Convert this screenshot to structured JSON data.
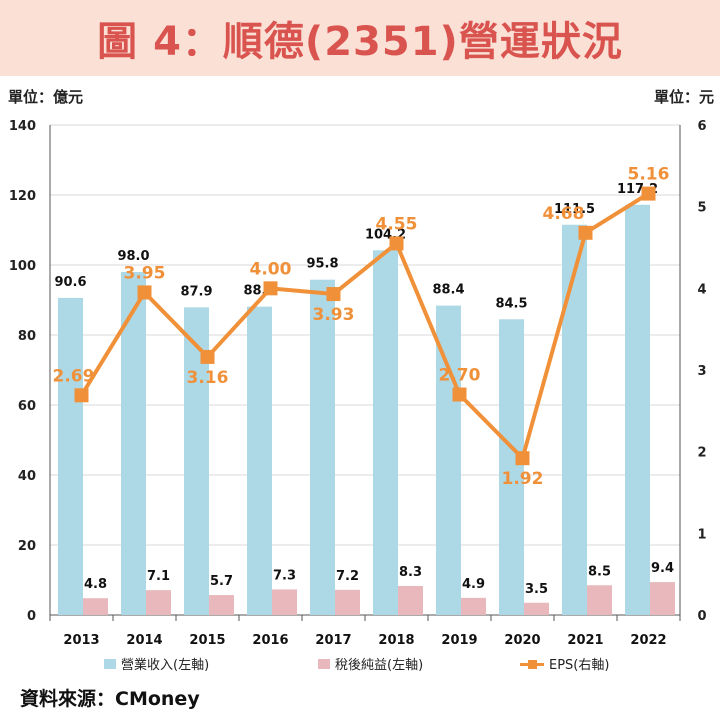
{
  "title": "圖 4：順德(2351)營運狀況",
  "unit_left": "單位：億元",
  "unit_right": "單位：元",
  "source": "資料來源：CMoney",
  "colors": {
    "revenue": "#add8e6",
    "net_income": "#e8b8bc",
    "eps": "#f0913a",
    "title_bg": "#fbe0d6",
    "title_text": "#d9534f"
  },
  "legend": [
    {
      "label": "營業收入(左軸)",
      "type": "bar",
      "color": "#add8e6"
    },
    {
      "label": "稅後純益(左軸)",
      "type": "bar",
      "color": "#e8b8bc"
    },
    {
      "label": "EPS(右軸)",
      "type": "line",
      "color": "#f0913a"
    }
  ],
  "chart_data": {
    "type": "bar",
    "categories": [
      "2013",
      "2014",
      "2015",
      "2016",
      "2017",
      "2018",
      "2019",
      "2020",
      "2021",
      "2022"
    ],
    "series": [
      {
        "name": "營業收入(左軸)",
        "type": "bar",
        "axis": "left",
        "values": [
          90.6,
          98.0,
          87.9,
          88.1,
          95.8,
          104.2,
          88.4,
          84.5,
          111.5,
          117.2
        ],
        "labels": [
          "90.6",
          "98.0",
          "87.9",
          "88.1",
          "95.8",
          "104.2",
          "88.4",
          "84.5",
          "111.5",
          "117.2"
        ]
      },
      {
        "name": "稅後純益(左軸)",
        "type": "bar",
        "axis": "left",
        "values": [
          4.8,
          7.1,
          5.7,
          7.3,
          7.2,
          8.3,
          4.9,
          3.5,
          8.5,
          9.4
        ],
        "labels": [
          "4.8",
          "7.1",
          "5.7",
          "7.3",
          "7.2",
          "8.3",
          "4.9",
          "3.5",
          "8.5",
          "9.4"
        ]
      },
      {
        "name": "EPS(右軸)",
        "type": "line",
        "axis": "right",
        "values": [
          2.69,
          3.95,
          3.16,
          4.0,
          3.93,
          4.55,
          2.7,
          1.92,
          4.68,
          5.16
        ],
        "labels": [
          "2.69",
          "3.95",
          "3.16",
          "4.00",
          "3.93",
          "4.55",
          "2.70",
          "1.92",
          "4.68",
          "5.16"
        ]
      }
    ],
    "ylim_left": [
      0,
      140
    ],
    "yticks_left": [
      "0",
      "20",
      "40",
      "60",
      "80",
      "100",
      "120",
      "140"
    ],
    "ylim_right": [
      0,
      6
    ],
    "yticks_right": [
      "0",
      "1",
      "2",
      "3",
      "4",
      "5",
      "6"
    ],
    "grid": true,
    "legend_position": "bottom"
  }
}
